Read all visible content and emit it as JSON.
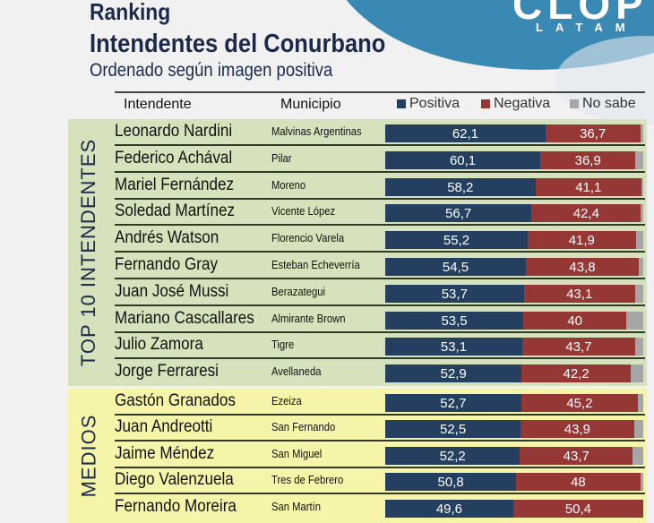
{
  "header": {
    "title_line1": "Ranking",
    "title_line2": "Intendentes del Conurbano",
    "subtitle": "Ordenado según imagen positiva",
    "logo_text": "CLOP",
    "logo_sub": "LATAM"
  },
  "columns": {
    "intendente": "Intendente",
    "municipio": "Municipio"
  },
  "legend": [
    {
      "label": "Positiva",
      "color": "#243f60"
    },
    {
      "label": "Negativa",
      "color": "#953735"
    },
    {
      "label": "No sabe",
      "color": "#a6a6a6"
    }
  ],
  "sections": [
    {
      "label": "TOP 10 INTENDENTES",
      "color": "#d6e2bc"
    },
    {
      "label": "MEDIOS",
      "color": "#f6f4a9"
    }
  ],
  "rows": [
    {
      "name": "Leonardo Nardini",
      "municipio": "Malvinas Argentinas",
      "positiva": "62,1",
      "negativa": "36,7",
      "pos": 62.1,
      "neg": 36.7,
      "section": 0
    },
    {
      "name": "Federico Achával",
      "municipio": "Pilar",
      "positiva": "60,1",
      "negativa": "36,9",
      "pos": 60.1,
      "neg": 36.9,
      "section": 0
    },
    {
      "name": "Mariel Fernández",
      "municipio": "Moreno",
      "positiva": "58,2",
      "negativa": "41,1",
      "pos": 58.2,
      "neg": 41.1,
      "section": 0
    },
    {
      "name": "Soledad Martínez",
      "municipio": "Vicente López",
      "positiva": "56,7",
      "negativa": "42,4",
      "pos": 56.7,
      "neg": 42.4,
      "section": 0
    },
    {
      "name": "Andrés Watson",
      "municipio": "Florencio Varela",
      "positiva": "55,2",
      "negativa": "41,9",
      "pos": 55.2,
      "neg": 41.9,
      "section": 0
    },
    {
      "name": "Fernando Gray",
      "municipio": "Esteban Echeverría",
      "positiva": "54,5",
      "negativa": "43,8",
      "pos": 54.5,
      "neg": 43.8,
      "section": 0
    },
    {
      "name": "Juan José Mussi",
      "municipio": "Berazategui",
      "positiva": "53,7",
      "negativa": "43,1",
      "pos": 53.7,
      "neg": 43.1,
      "section": 0
    },
    {
      "name": "Mariano Cascallares",
      "municipio": "Almirante Brown",
      "positiva": "53,5",
      "negativa": "40",
      "pos": 53.5,
      "neg": 40,
      "section": 0
    },
    {
      "name": "Julio Zamora",
      "municipio": "Tigre",
      "positiva": "53,1",
      "negativa": "43,7",
      "pos": 53.1,
      "neg": 43.7,
      "section": 0
    },
    {
      "name": "Jorge Ferraresi",
      "municipio": "Avellaneda",
      "positiva": "52,9",
      "negativa": "42,2",
      "pos": 52.9,
      "neg": 42.2,
      "section": 0
    },
    {
      "name": "Gastón Granados",
      "municipio": "Ezeiza",
      "positiva": "52,7",
      "negativa": "45,2",
      "pos": 52.7,
      "neg": 45.2,
      "section": 1
    },
    {
      "name": "Juan Andreotti",
      "municipio": "San Fernando",
      "positiva": "52,5",
      "negativa": "43,9",
      "pos": 52.5,
      "neg": 43.9,
      "section": 1
    },
    {
      "name": "Jaime Méndez",
      "municipio": "San Miguel",
      "positiva": "52,2",
      "negativa": "43,7",
      "pos": 52.2,
      "neg": 43.7,
      "section": 1
    },
    {
      "name": "Diego Valenzuela",
      "municipio": "Tres de Febrero",
      "positiva": "50,8",
      "negativa": "48",
      "pos": 50.8,
      "neg": 48,
      "section": 1
    },
    {
      "name": "Fernando Moreira",
      "municipio": "San Martín",
      "positiva": "49,6",
      "negativa": "50,4",
      "pos": 49.6,
      "neg": 50.4,
      "section": 1
    }
  ],
  "chart_data": {
    "type": "bar",
    "stacked": true,
    "orientation": "horizontal",
    "title": "Ranking Intendentes del Conurbano",
    "subtitle": "Ordenado según imagen positiva",
    "categories": [
      "Leonardo Nardini",
      "Federico Achával",
      "Mariel Fernández",
      "Soledad Martínez",
      "Andrés Watson",
      "Fernando Gray",
      "Juan José Mussi",
      "Mariano Cascallares",
      "Julio Zamora",
      "Jorge Ferraresi",
      "Gastón Granados",
      "Juan Andreotti",
      "Jaime Méndez",
      "Diego Valenzuela",
      "Fernando Moreira"
    ],
    "municipios": [
      "Malvinas Argentinas",
      "Pilar",
      "Moreno",
      "Vicente López",
      "Florencio Varela",
      "Esteban Echeverría",
      "Berazategui",
      "Almirante Brown",
      "Tigre",
      "Avellaneda",
      "Ezeiza",
      "San Fernando",
      "San Miguel",
      "Tres de Febrero",
      "San Martín"
    ],
    "groups": [
      {
        "label": "TOP 10 INTENDENTES",
        "range": [
          0,
          9
        ]
      },
      {
        "label": "MEDIOS",
        "range": [
          10,
          14
        ]
      }
    ],
    "series": [
      {
        "name": "Positiva",
        "color": "#243f60",
        "values": [
          62.1,
          60.1,
          58.2,
          56.7,
          55.2,
          54.5,
          53.7,
          53.5,
          53.1,
          52.9,
          52.7,
          52.5,
          52.2,
          50.8,
          49.6
        ]
      },
      {
        "name": "Negativa",
        "color": "#953735",
        "values": [
          36.7,
          36.9,
          41.1,
          42.4,
          41.9,
          43.8,
          43.1,
          40,
          43.7,
          42.2,
          45.2,
          43.9,
          43.7,
          48,
          50.4
        ]
      },
      {
        "name": "No sabe",
        "color": "#a6a6a6",
        "values": [
          1.2,
          3.0,
          0.7,
          0.9,
          2.9,
          1.7,
          3.2,
          6.5,
          3.2,
          4.9,
          2.1,
          3.6,
          4.1,
          1.2,
          0
        ]
      }
    ],
    "xlim": [
      0,
      100
    ],
    "legend_position": "top-right",
    "grid": false
  }
}
